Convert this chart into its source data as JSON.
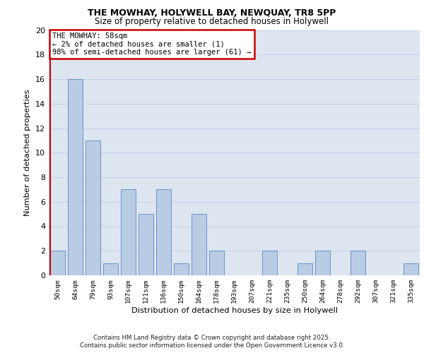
{
  "title1": "THE MOWHAY, HOLYWELL BAY, NEWQUAY, TR8 5PP",
  "title2": "Size of property relative to detached houses in Holywell",
  "xlabel": "Distribution of detached houses by size in Holywell",
  "ylabel": "Number of detached properties",
  "categories": [
    "50sqm",
    "64sqm",
    "79sqm",
    "93sqm",
    "107sqm",
    "121sqm",
    "136sqm",
    "150sqm",
    "164sqm",
    "178sqm",
    "193sqm",
    "207sqm",
    "221sqm",
    "235sqm",
    "250sqm",
    "264sqm",
    "278sqm",
    "292sqm",
    "307sqm",
    "321sqm",
    "335sqm"
  ],
  "values": [
    2,
    16,
    11,
    1,
    7,
    5,
    7,
    1,
    5,
    2,
    0,
    0,
    2,
    0,
    1,
    2,
    0,
    2,
    0,
    0,
    1
  ],
  "bar_color": "#b8cce4",
  "bar_edge_color": "#5a87c5",
  "annotation_box_text": "THE MOWHAY: 58sqm\n← 2% of detached houses are smaller (1)\n98% of semi-detached houses are larger (61) →",
  "annotation_box_color": "#cc0000",
  "annotation_box_fill": "#ffffff",
  "vline_color": "#cc0000",
  "ylim": [
    0,
    20
  ],
  "yticks": [
    0,
    2,
    4,
    6,
    8,
    10,
    12,
    14,
    16,
    18,
    20
  ],
  "grid_color": "#c8d4e8",
  "background_color": "#dde5f0",
  "footer_line1": "Contains HM Land Registry data © Crown copyright and database right 2025.",
  "footer_line2": "Contains public sector information licensed under the Open Government Licence v3.0."
}
